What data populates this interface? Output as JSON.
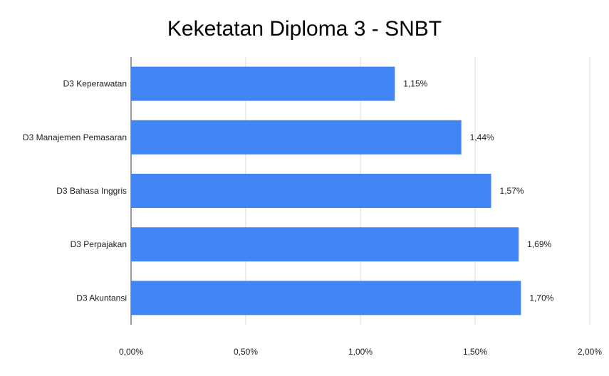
{
  "chart_data": {
    "type": "bar",
    "orientation": "horizontal",
    "title": "Keketatan Diploma 3 - SNBT",
    "categories": [
      "D3 Keperawatan",
      "D3 Manajemen Pemasaran",
      "D3 Bahasa Inggris",
      "D3 Perpajakan",
      "D3 Akuntansi"
    ],
    "values": [
      1.15,
      1.44,
      1.57,
      1.69,
      1.7
    ],
    "data_labels": [
      "1,15%",
      "1,44%",
      "1,57%",
      "1,69%",
      "1,70%"
    ],
    "xlim": [
      0,
      2.0
    ],
    "x_ticks": [
      0,
      0.5,
      1.0,
      1.5,
      2.0
    ],
    "x_tick_labels": [
      "0,00%",
      "0,50%",
      "1,00%",
      "1,50%",
      "2,00%"
    ],
    "xlabel": "",
    "ylabel": "",
    "grid": true,
    "legend": "none",
    "bar_color": "#4285f4",
    "grid_color": "#d9d9d9",
    "axis_color": "#333333"
  }
}
